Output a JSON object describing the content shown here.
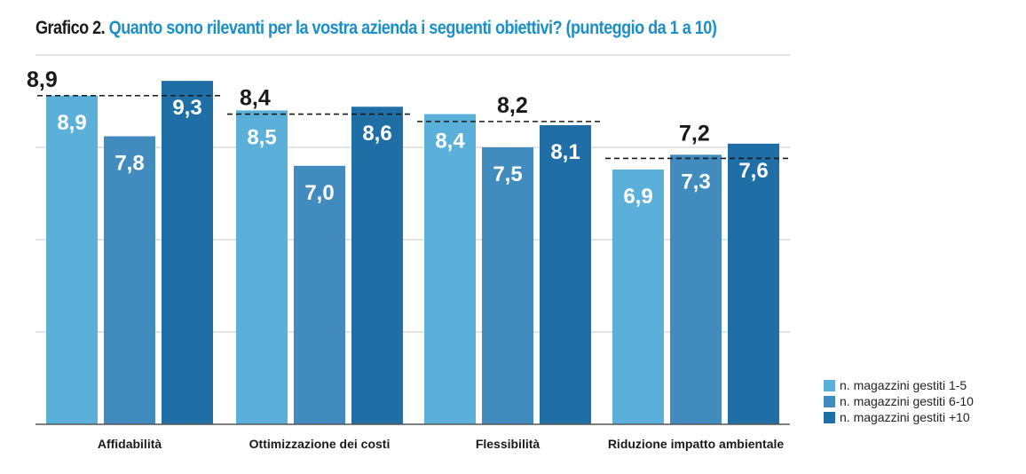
{
  "title": {
    "lead": "Grafico 2.",
    "question": "Quanto sono rilevanti per la vostra azienda i seguenti obiettivi? (punteggio da 1 a 10)"
  },
  "chart_data": {
    "type": "bar",
    "title": "Grafico 2. Quanto sono rilevanti per la vostra azienda i seguenti obiettivi? (punteggio da 1 a 10)",
    "categories": [
      "Affidabilità",
      "Ottimizzazione dei costi",
      "Flessibilità",
      "Riduzione impatto ambientale"
    ],
    "series": [
      {
        "name": "n. magazzini gestiti 1-5",
        "values": [
          8.9,
          8.5,
          8.4,
          6.9
        ],
        "labels": [
          "8,9",
          "8,5",
          "8,4",
          "6,9"
        ],
        "color": "#5ab0d8"
      },
      {
        "name": "n. magazzini gestiti 6-10",
        "values": [
          7.8,
          7.0,
          7.5,
          7.3
        ],
        "labels": [
          "7,8",
          "7,0",
          "7,5",
          "7,3"
        ],
        "color": "#428bbf"
      },
      {
        "name": "n. magazzini gestiti +10",
        "values": [
          9.3,
          8.6,
          8.1,
          7.6
        ],
        "labels": [
          "9,3",
          "8,6",
          "8,1",
          "7,6"
        ],
        "color": "#1f6ea5"
      }
    ],
    "averages": {
      "values": [
        8.9,
        8.4,
        8.2,
        7.2
      ],
      "labels": [
        "8,9",
        "8,4",
        "8,2",
        "7,2"
      ],
      "style": "dashed"
    },
    "ylim": [
      0,
      10
    ],
    "gridlines": [
      2.5,
      5,
      7.5,
      10
    ],
    "grid": true,
    "y_tick_labels": false,
    "legend": "bottom-right",
    "xlabel": "",
    "ylabel": ""
  }
}
